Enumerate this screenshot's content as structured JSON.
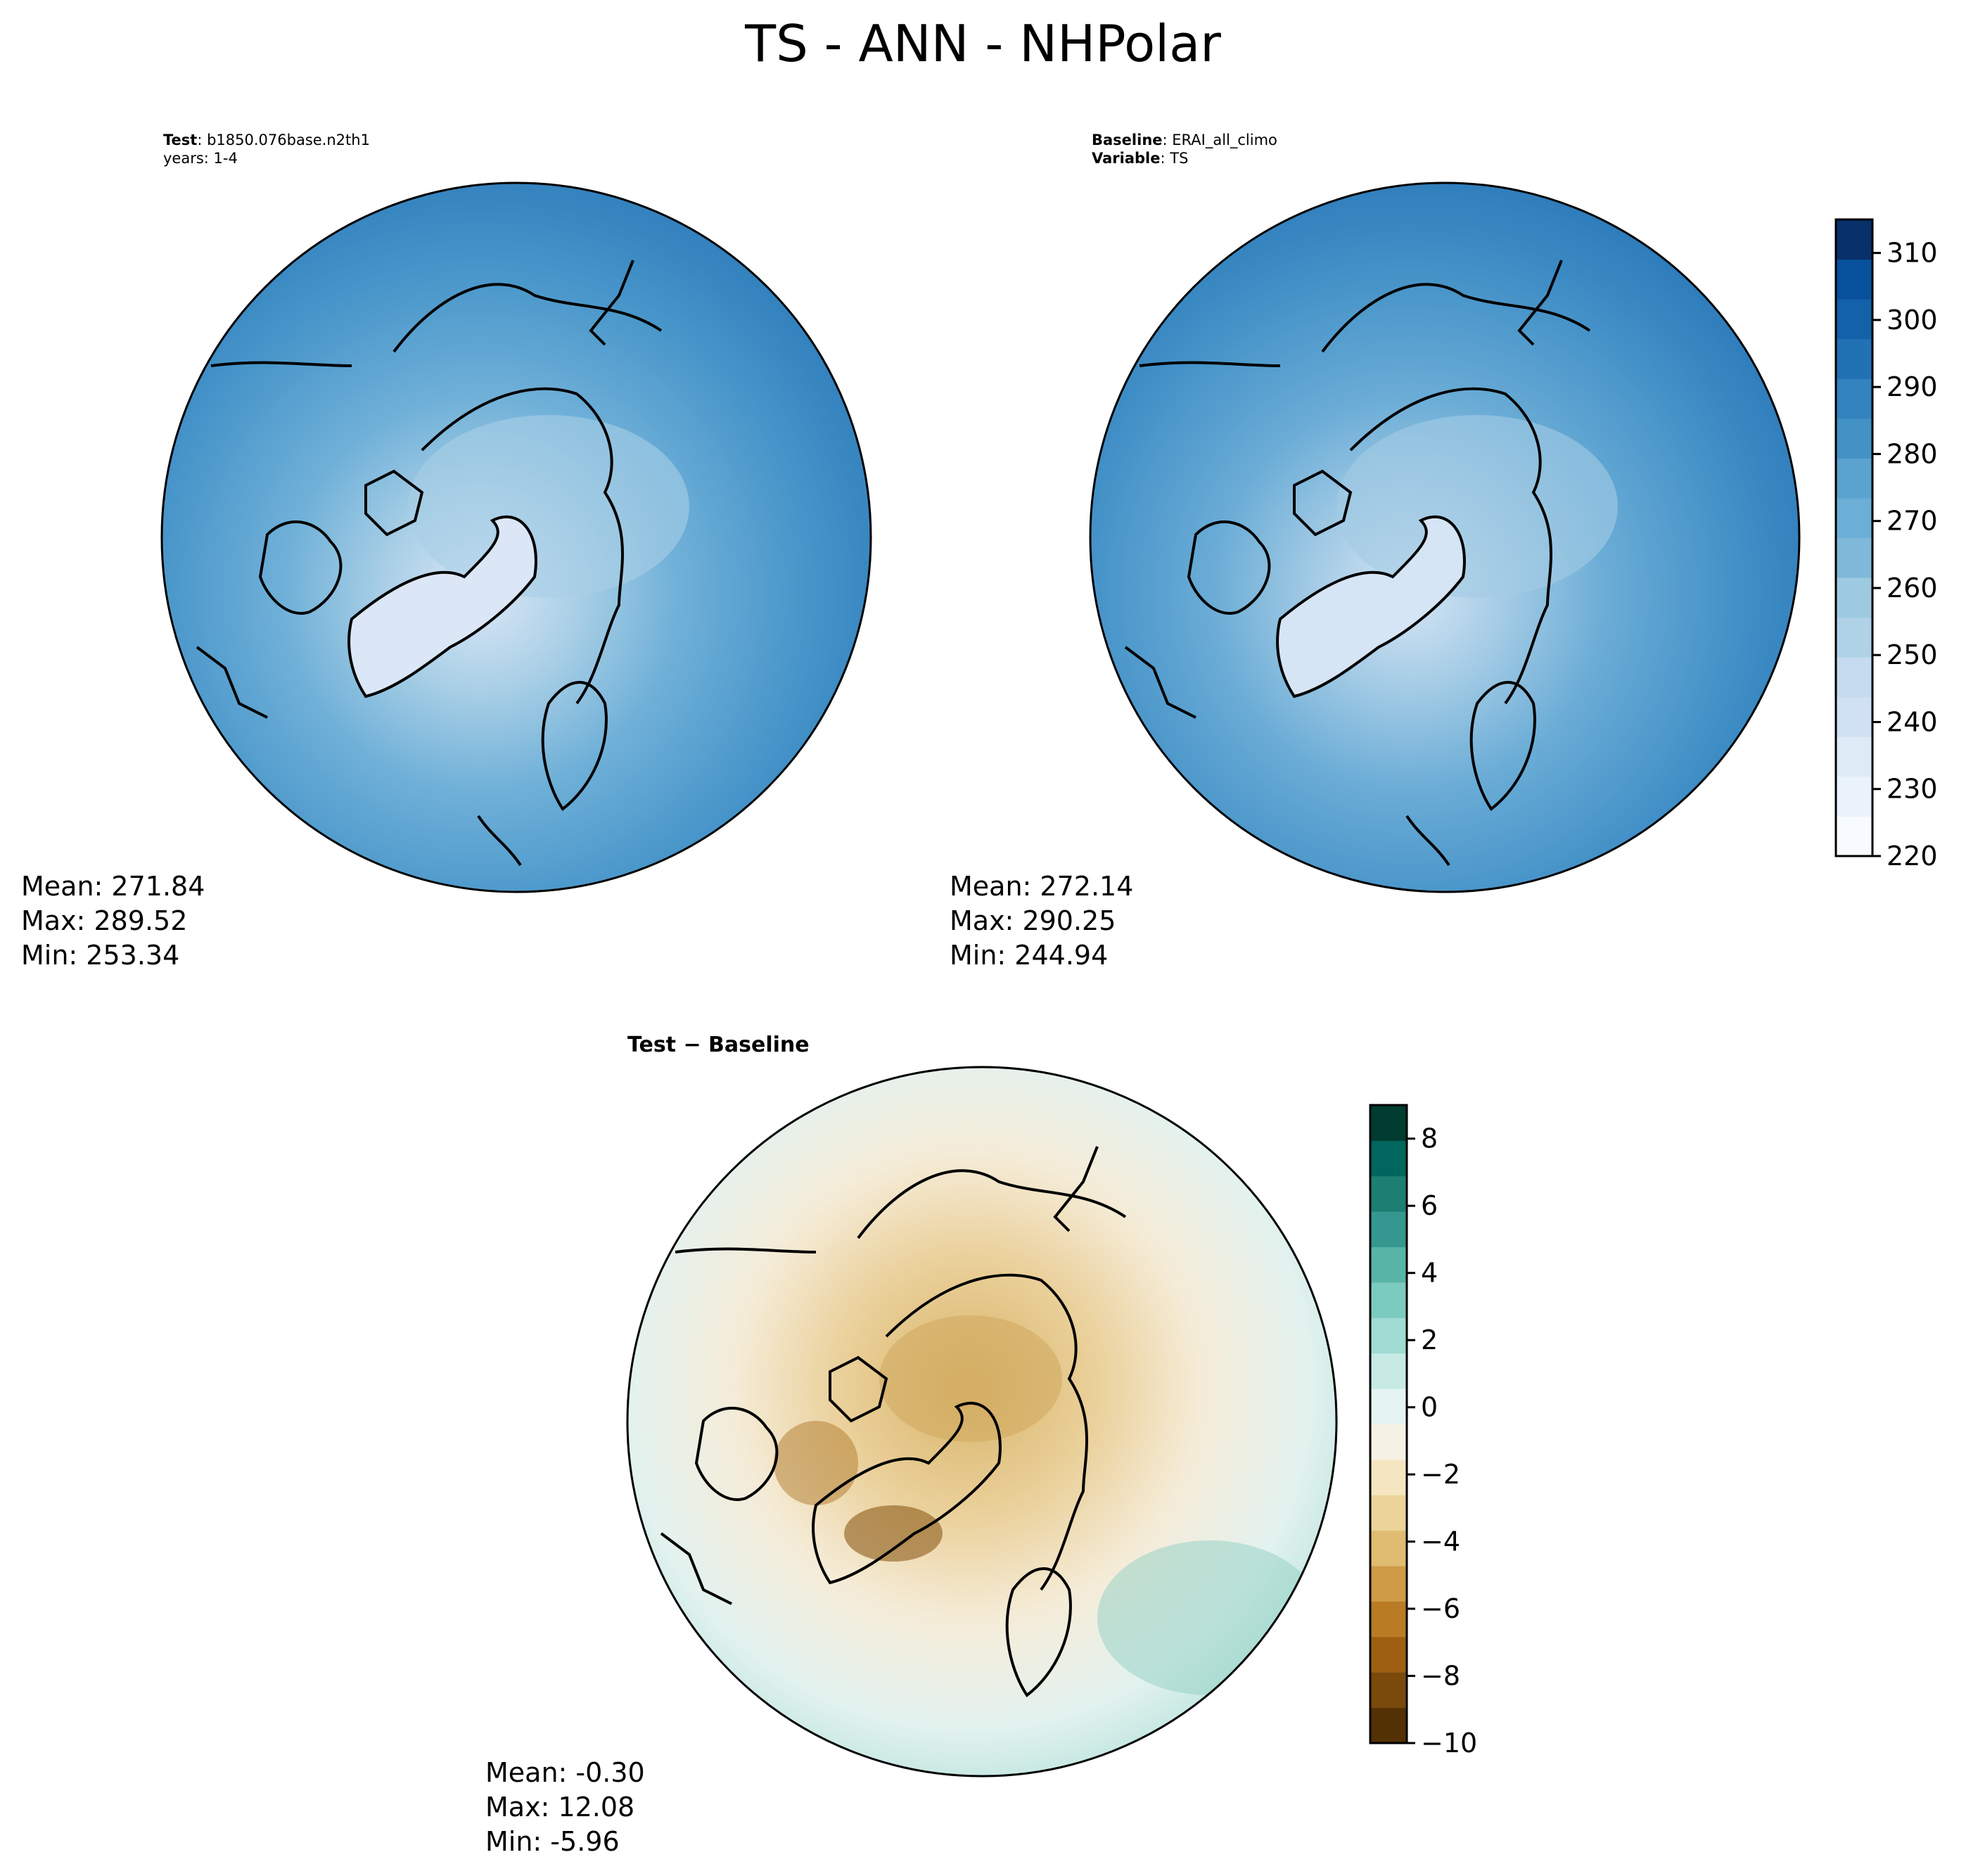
{
  "title": "TS - ANN - NHPolar",
  "test_panel": {
    "label_key": "Test",
    "label_value": "b1850.076base.n2th1",
    "years": "years: 1-4",
    "stats": {
      "mean": "Mean: 271.84",
      "max": "Max: 289.52",
      "min": "Min: 253.34"
    }
  },
  "baseline_panel": {
    "label_key": "Baseline",
    "label_value": "ERAI_all_climo",
    "variable_key": "Variable",
    "variable_value": "TS",
    "stats": {
      "mean": "Mean: 272.14",
      "max": "Max: 290.25",
      "min": "Min: 244.94"
    }
  },
  "diff_panel": {
    "title": "Test − Baseline",
    "stats": {
      "mean": "Mean: -0.30",
      "max": "Max: 12.08",
      "min": "Min: -5.96"
    }
  },
  "colorbars": {
    "main": {
      "ticks": [
        "220",
        "230",
        "240",
        "250",
        "260",
        "270",
        "280",
        "290",
        "300",
        "310"
      ],
      "range": [
        220,
        315
      ],
      "colors": [
        "#f7fbff",
        "#eaf3fb",
        "#deebf7",
        "#cfe1f2",
        "#c6dbef",
        "#b0d2e7",
        "#9ecae1",
        "#7fb9da",
        "#6baed6",
        "#5aa2cf",
        "#4292c6",
        "#3383be",
        "#2171b5",
        "#1361a9",
        "#08519c",
        "#08306b"
      ]
    },
    "diff": {
      "ticks": [
        "−10",
        "−8",
        "−6",
        "−4",
        "−2",
        "0",
        "2",
        "4",
        "6",
        "8"
      ],
      "range": [
        -10,
        9
      ],
      "colors": [
        "#543005",
        "#7a4a0c",
        "#9e5f12",
        "#b97b24",
        "#cf9b46",
        "#dfbc71",
        "#ebd39a",
        "#f5e6c1",
        "#f5f1e4",
        "#e5f3f1",
        "#c7eae5",
        "#a0dcd3",
        "#7ccbbf",
        "#58b4a7",
        "#35978f",
        "#1d7e74",
        "#01665e",
        "#003c30"
      ]
    }
  }
}
